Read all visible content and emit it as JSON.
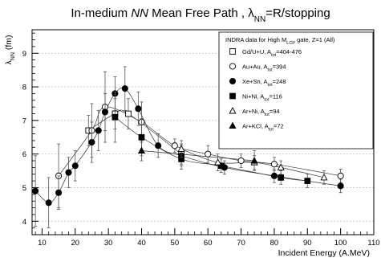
{
  "chart_data": {
    "type": "scatter",
    "title": {
      "prefix": "In-medium ",
      "italic": "NN",
      "middle": " Mean Free Path , ",
      "lambda": "λ",
      "lambda_sub": "NN",
      "suffix": "=R/stopping"
    },
    "xlabel": "Incident Energy (A.MeV)",
    "ylabel": {
      "lambda": "λ",
      "sub": "NN",
      "unit": " (fm)"
    },
    "xlim": [
      7,
      110
    ],
    "ylim": [
      3.6,
      9.7
    ],
    "xticks": [
      10,
      20,
      30,
      40,
      50,
      60,
      70,
      80,
      90,
      100,
      110
    ],
    "yticks": [
      4,
      5,
      6,
      7,
      8,
      9
    ],
    "grid": "horizontal dashed",
    "legend": {
      "placement": "top-right",
      "header": {
        "pre": "INDRA data for High M",
        "sub": "LCP",
        "post": " gate, Z=1 (All)"
      },
      "entries": [
        {
          "marker": "open-square",
          "pre": "Gd/U+U, A",
          "sub": "tot",
          "post": "=404-476"
        },
        {
          "marker": "open-circle",
          "pre": "Au+Au, A",
          "sub": "tot",
          "post": "=394"
        },
        {
          "marker": "filled-circle",
          "pre": "Xe+Sn, A",
          "sub": "tot",
          "post": "=248"
        },
        {
          "marker": "filled-square",
          "pre": "Ni+Ni, A",
          "sub": "tot",
          "post": "=116"
        },
        {
          "marker": "open-triangle",
          "pre": "Ar+Ni, A",
          "sub": "tot",
          "post": "=94"
        },
        {
          "marker": "filled-triangle",
          "pre": "Ar+KCl, A",
          "sub": "tot",
          "post": "=72"
        }
      ]
    },
    "series": [
      {
        "name": "Gd/U+U, A_tot=404-476",
        "marker": "open-square",
        "points": [
          {
            "x": 24,
            "y": 6.7,
            "err": 0.45
          },
          {
            "x": 32,
            "y": 7.2,
            "err": 0.45
          },
          {
            "x": 36,
            "y": 7.2,
            "err": 0.45
          },
          {
            "x": 52,
            "y": 6.0,
            "err": 0.3
          }
        ]
      },
      {
        "name": "Au+Au, A_tot=394",
        "marker": "open-circle",
        "points": [
          {
            "x": 15,
            "y": 5.35,
            "err": 0.95
          },
          {
            "x": 25,
            "y": 6.7,
            "err": 0.8
          },
          {
            "x": 29,
            "y": 7.4,
            "err": 1.05
          },
          {
            "x": 40,
            "y": 6.95,
            "err": 0.6
          },
          {
            "x": 50,
            "y": 6.25,
            "err": 0.2
          },
          {
            "x": 60,
            "y": 6.0,
            "err": 0.25
          },
          {
            "x": 70,
            "y": 5.8,
            "err": 0.2
          },
          {
            "x": 80,
            "y": 5.7,
            "err": 0.2
          },
          {
            "x": 100,
            "y": 5.35,
            "err": 0.2
          }
        ]
      },
      {
        "name": "Xe+Sn, A_tot=248",
        "marker": "filled-circle",
        "points": [
          {
            "x": 8,
            "y": 4.9,
            "err": 1.05
          },
          {
            "x": 12,
            "y": 4.55,
            "err": 0.75
          },
          {
            "x": 15,
            "y": 4.85,
            "err": 0.5
          },
          {
            "x": 18,
            "y": 5.45,
            "err": 0.45
          },
          {
            "x": 20,
            "y": 5.65,
            "err": 0.45
          },
          {
            "x": 25,
            "y": 6.35,
            "err": 0.6
          },
          {
            "x": 27,
            "y": 6.7,
            "err": 0.6
          },
          {
            "x": 29,
            "y": 7.25,
            "err": 0.55
          },
          {
            "x": 32,
            "y": 7.8,
            "err": 0.5
          },
          {
            "x": 35,
            "y": 7.95,
            "err": 0.65
          },
          {
            "x": 39,
            "y": 7.35,
            "err": 0.5
          },
          {
            "x": 45,
            "y": 6.25,
            "err": 0.35
          },
          {
            "x": 52,
            "y": 5.95,
            "err": 0.3
          },
          {
            "x": 65,
            "y": 5.6,
            "err": 0.2
          },
          {
            "x": 80,
            "y": 5.35,
            "err": 0.2
          },
          {
            "x": 100,
            "y": 5.05,
            "err": 0.2
          }
        ]
      },
      {
        "name": "Ni+Ni, A_tot=116",
        "marker": "filled-square",
        "points": [
          {
            "x": 32,
            "y": 7.1,
            "err": 0.75
          },
          {
            "x": 40,
            "y": 6.5,
            "err": 0.55
          },
          {
            "x": 52,
            "y": 5.85,
            "err": 0.3
          },
          {
            "x": 64,
            "y": 5.65,
            "err": 0.2
          },
          {
            "x": 82,
            "y": 5.3,
            "err": 0.2
          },
          {
            "x": 90,
            "y": 5.2,
            "err": 0.2
          }
        ]
      },
      {
        "name": "Ar+Ni, A_tot=94",
        "marker": "open-triangle",
        "points": [
          {
            "x": 52,
            "y": 6.15,
            "err": 0.25
          },
          {
            "x": 63,
            "y": 5.75,
            "err": 0.25
          },
          {
            "x": 74,
            "y": 5.75,
            "err": 0.2
          },
          {
            "x": 82,
            "y": 5.6,
            "err": 0.2
          },
          {
            "x": 95,
            "y": 5.3,
            "err": 0.2
          }
        ]
      },
      {
        "name": "Ar+KCl, A_tot=72",
        "marker": "filled-triangle",
        "points": [
          {
            "x": 40,
            "y": 6.1,
            "err": 0.3
          },
          {
            "x": 74,
            "y": 5.8,
            "err": 0.3
          }
        ]
      }
    ]
  }
}
